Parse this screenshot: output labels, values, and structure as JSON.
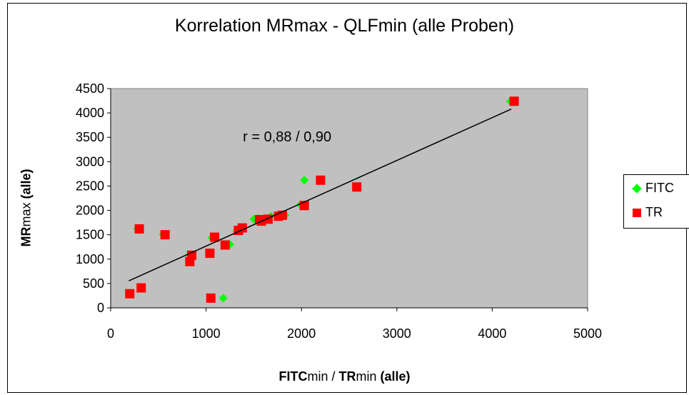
{
  "chart_data": {
    "type": "scatter",
    "title": "Korrelation MRmax - QLFmin (alle Proben)",
    "xlabel": {
      "a": "FITC",
      "b": "min / ",
      "c": "TR",
      "d": "min ",
      "e": "(alle)"
    },
    "ylabel": {
      "a": "MR",
      "b": "max ",
      "c": "(alle)"
    },
    "xlim": [
      0,
      5000
    ],
    "ylim": [
      0,
      4500
    ],
    "xticks": [
      "0",
      "1000",
      "2000",
      "3000",
      "4000",
      "5000"
    ],
    "yticks": [
      "0",
      "500",
      "1000",
      "1500",
      "2000",
      "2500",
      "3000",
      "3500",
      "4000",
      "4500"
    ],
    "grid": false,
    "plot_background": "#c0c0c0",
    "legend_position": "right",
    "annotation": "r = 0,88 / 0,90",
    "series": [
      {
        "name": "FITC",
        "marker": "diamond",
        "color": "#00ff00",
        "points": [
          [
            280,
            1620
          ],
          [
            550,
            1510
          ],
          [
            830,
            1090
          ],
          [
            1030,
            1130
          ],
          [
            1060,
            1440
          ],
          [
            1180,
            200
          ],
          [
            1250,
            1300
          ],
          [
            1320,
            1580
          ],
          [
            1500,
            1820
          ],
          [
            1540,
            1840
          ],
          [
            1680,
            1880
          ],
          [
            1830,
            1900
          ],
          [
            1990,
            2120
          ],
          [
            2030,
            2620
          ],
          [
            4190,
            4240
          ]
        ]
      },
      {
        "name": "TR",
        "marker": "square",
        "color": "#ff0000",
        "points": [
          [
            200,
            290
          ],
          [
            300,
            1620
          ],
          [
            320,
            410
          ],
          [
            570,
            1500
          ],
          [
            830,
            950
          ],
          [
            850,
            1080
          ],
          [
            1040,
            1120
          ],
          [
            1050,
            200
          ],
          [
            1090,
            1450
          ],
          [
            1200,
            1290
          ],
          [
            1340,
            1590
          ],
          [
            1380,
            1640
          ],
          [
            1560,
            1810
          ],
          [
            1580,
            1780
          ],
          [
            1650,
            1820
          ],
          [
            1760,
            1880
          ],
          [
            1800,
            1900
          ],
          [
            2030,
            2100
          ],
          [
            2200,
            2620
          ],
          [
            2580,
            2480
          ],
          [
            4230,
            4240
          ]
        ]
      }
    ],
    "trendline": {
      "x": [
        190,
        4200
      ],
      "y": [
        555,
        4080
      ]
    }
  }
}
